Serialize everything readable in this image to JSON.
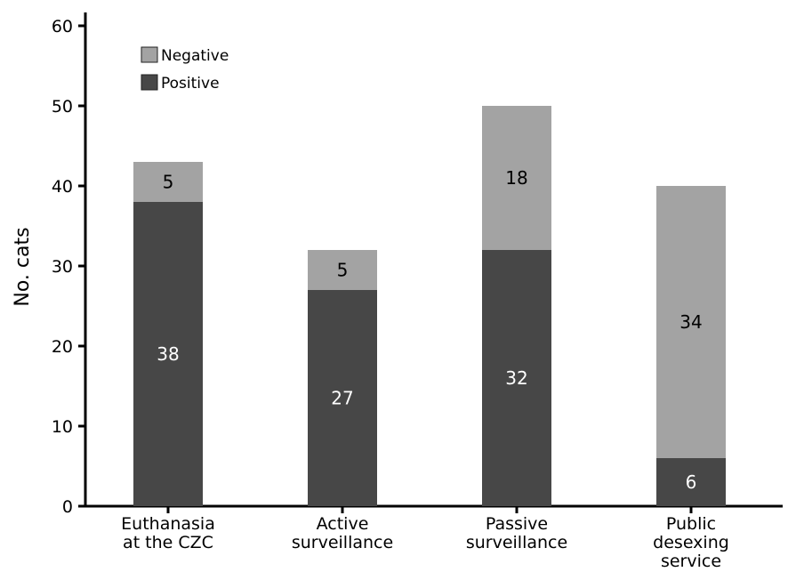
{
  "chart_data": {
    "type": "bar",
    "stacked": true,
    "categories": [
      [
        "Euthanasia",
        "at the CZC"
      ],
      [
        "Active",
        "surveillance"
      ],
      [
        "Passive",
        "surveillance"
      ],
      [
        "Public",
        "desexing",
        "service"
      ]
    ],
    "series": [
      {
        "name": "Positive",
        "values": [
          38,
          27,
          32,
          6
        ],
        "color": "#474747",
        "label_color": "#ffffff"
      },
      {
        "name": "Negative",
        "values": [
          5,
          5,
          18,
          34
        ],
        "color": "#a3a3a3",
        "label_color": "#000000"
      }
    ],
    "legend_order": [
      "Negative",
      "Positive"
    ],
    "legend_position": "top-left",
    "ylabel": "No. cats",
    "xlabel": "",
    "ylim": [
      0,
      60
    ],
    "yticks": [
      0,
      10,
      20,
      30,
      40,
      50,
      60
    ],
    "grid": false
  }
}
